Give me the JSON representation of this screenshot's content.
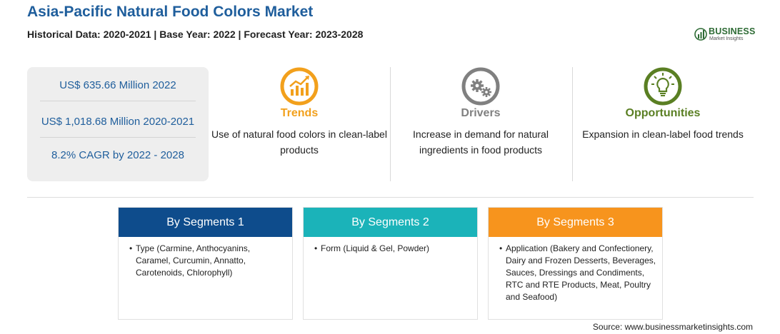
{
  "header": {
    "title": "Asia-Pacific Natural Food Colors Market",
    "subtitle": "Historical Data: 2020-2021 | Base Year: 2022 | Forecast Year: 2023-2028"
  },
  "logo": {
    "name": "BUSINESS",
    "tagline": "Market Insights"
  },
  "stats": [
    "US$ 635.66 Million 2022",
    "US$ 1,018.68 Million 2020-2021",
    "8.2% CAGR by 2022 - 2028"
  ],
  "cards": [
    {
      "label": "Trends",
      "text": "Use of natural food colors in clean-label products",
      "icon": "rising-chart-icon",
      "color": "#f2a01c"
    },
    {
      "label": "Drivers",
      "text": "Increase in demand for natural ingredients in food products",
      "icon": "gears-icon",
      "color": "#808080"
    },
    {
      "label": "Opportunities",
      "text": "Expansion in clean-label food trends",
      "icon": "lightbulb-icon",
      "color": "#5a7f23"
    }
  ],
  "segments": [
    {
      "title": "By Segments 1",
      "color": "#0e4c8c",
      "bullet": "•",
      "text": "Type (Carmine, Anthocyanins, Caramel, Curcumin, Annatto, Carotenoids, Chlorophyll)"
    },
    {
      "title": "By Segments 2",
      "color": "#1bb3b9",
      "bullet": "•",
      "text": "Form (Liquid & Gel, Powder)"
    },
    {
      "title": "By Segments 3",
      "color": "#f7941d",
      "bullet": "•",
      "text": "Application (Bakery and Confectionery, Dairy and Frozen Desserts, Beverages, Sauces, Dressings and Condiments, RTC and RTE Products, Meat, Poultry and Seafood)"
    }
  ],
  "source": "Source: www.businessmarketinsights.com"
}
